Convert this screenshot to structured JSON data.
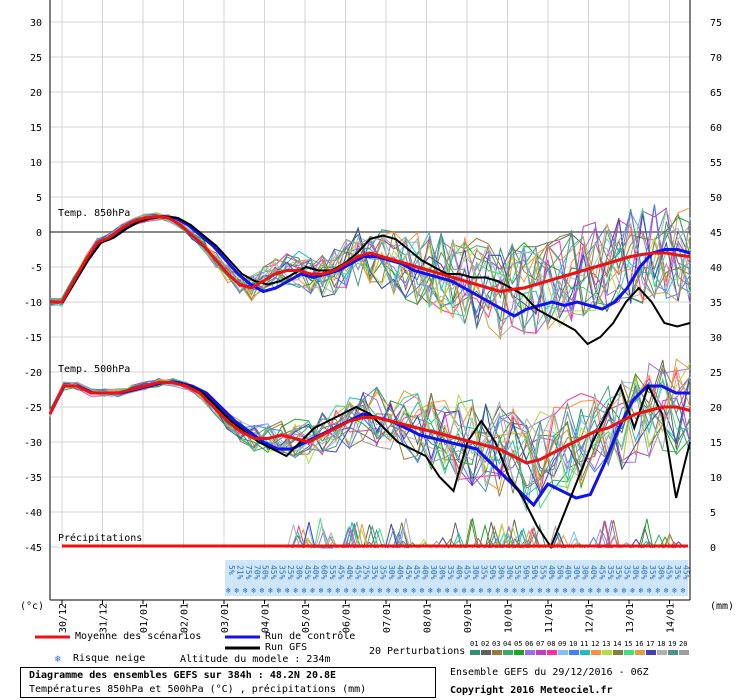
{
  "chart_data": {
    "type": "line",
    "left_axis_ticks": [
      30,
      25,
      20,
      15,
      10,
      5,
      0,
      -5,
      -10,
      -15,
      -20,
      -25,
      -30,
      -35,
      -40,
      -45
    ],
    "right_axis_ticks": [
      75,
      70,
      65,
      60,
      55,
      50,
      45,
      40,
      35,
      30,
      25,
      20,
      15,
      10,
      5,
      0
    ],
    "left_unit": "(°c)",
    "right_unit": "(mm)",
    "x_dates": [
      "30/12",
      "31/12",
      "01/01",
      "02/01",
      "03/01",
      "04/01",
      "05/01",
      "06/01",
      "07/01",
      "08/01",
      "09/01",
      "10/01",
      "11/01",
      "12/01",
      "13/01",
      "14/01"
    ],
    "section_labels": {
      "t850": "Temp. 850hPa",
      "t500": "Temp. 500hPa",
      "precip": "Précipitations"
    },
    "snow_risk_pct": [
      "5%",
      "21%",
      "75%",
      "70%",
      "50%",
      "45%",
      "35%",
      "25%",
      "30%",
      "45%",
      "40%",
      "60%",
      "55%",
      "45%",
      "40%",
      "45%",
      "25%",
      "35%",
      "35%",
      "30%",
      "40%",
      "45%",
      "45%",
      "40%",
      "30%",
      "30%",
      "35%",
      "40%",
      "45%",
      "30%",
      "35%",
      "50%",
      "30%",
      "30%",
      "55%",
      "50%",
      "50%",
      "55%",
      "40%",
      "50%",
      "40%",
      "30%",
      "30%",
      "40%",
      "45%",
      "35%",
      "35%",
      "35%",
      "30%",
      "40%",
      "35%",
      "30%",
      "45%",
      "35%",
      "45%"
    ],
    "t850_mean": [
      -10,
      -10,
      -7,
      -4,
      -1.5,
      -0.8,
      0.5,
      1.5,
      2,
      2.2,
      2,
      1,
      -0.5,
      -2,
      -4,
      -6,
      -7.5,
      -8,
      -7,
      -6,
      -5.5,
      -5.5,
      -6,
      -6,
      -5.5,
      -4.5,
      -3.5,
      -3,
      -3.5,
      -4,
      -4.5,
      -5,
      -5.5,
      -6,
      -6.5,
      -7,
      -7.5,
      -8,
      -8.5,
      -8.2,
      -8,
      -7.5,
      -7,
      -6.5,
      -6,
      -5.5,
      -5,
      -4.5,
      -4,
      -3.5,
      -3.2,
      -3,
      -3,
      -3.3,
      -3.5
    ],
    "t850_control": [
      -10,
      -10,
      -7,
      -4,
      -1.5,
      -0.8,
      0.5,
      1.5,
      2,
      2.2,
      2,
      1,
      -0.5,
      -2,
      -4,
      -6,
      -7.5,
      -8.5,
      -8,
      -7,
      -6,
      -6.5,
      -6,
      -5.5,
      -4.5,
      -3.5,
      -3.5,
      -4,
      -4.5,
      -5.5,
      -6,
      -6.5,
      -7,
      -8,
      -9,
      -10,
      -11,
      -12,
      -11,
      -10.5,
      -10,
      -10.5,
      -10,
      -10.5,
      -11,
      -10,
      -8,
      -5,
      -3,
      -2.5,
      -2.5,
      -3
    ],
    "t850_gfs": [
      -10,
      -10,
      -7,
      -4,
      -1.5,
      -0.8,
      0.5,
      1.5,
      2,
      2.2,
      2,
      1,
      -0.5,
      -2,
      -4,
      -6,
      -7,
      -7.5,
      -7,
      -6,
      -5,
      -5.5,
      -5.5,
      -4.5,
      -3,
      -1,
      -0.5,
      -1,
      -2.5,
      -4,
      -5,
      -6,
      -6,
      -6.5,
      -6.5,
      -7,
      -8,
      -9,
      -11,
      -12,
      -13,
      -14,
      -16,
      -15,
      -13,
      -10,
      -8,
      -10,
      -13,
      -13.5,
      -13
    ],
    "t500_mean": [
      -26,
      -22,
      -22,
      -23,
      -23,
      -23,
      -22.5,
      -22,
      -21.5,
      -21.5,
      -22,
      -23,
      -25,
      -27,
      -28.5,
      -29.5,
      -29.5,
      -29,
      -29.5,
      -30,
      -29,
      -28,
      -27,
      -26.5,
      -26.5,
      -27,
      -27.5,
      -28,
      -28.5,
      -29,
      -29.5,
      -30,
      -30.5,
      -31,
      -32,
      -33,
      -32.5,
      -31.5,
      -30.5,
      -29.5,
      -28.5,
      -28,
      -27,
      -26,
      -25.5,
      -25,
      -25,
      -25.5
    ],
    "t500_control": [
      -26,
      -22,
      -22,
      -23,
      -23,
      -23,
      -22.5,
      -22,
      -21.5,
      -21.5,
      -22,
      -23,
      -25,
      -27,
      -28.5,
      -30,
      -31,
      -31,
      -30,
      -29,
      -28,
      -27,
      -26,
      -26.5,
      -27,
      -28,
      -29,
      -29.5,
      -30,
      -30.5,
      -31,
      -33,
      -35,
      -37,
      -39,
      -36,
      -37,
      -38,
      -37.5,
      -33,
      -28,
      -24,
      -22,
      -22,
      -23,
      -23
    ],
    "t500_gfs": [
      -26,
      -22,
      -22,
      -23,
      -23,
      -23,
      -22.5,
      -22,
      -21.5,
      -21.5,
      -22,
      -23,
      -25,
      -27,
      -28.5,
      -30,
      -31,
      -32,
      -30,
      -28,
      -27,
      -26,
      -25,
      -26,
      -28,
      -30,
      -31,
      -32,
      -35,
      -37,
      -30,
      -27,
      -30,
      -35,
      -38,
      -42,
      -45,
      -40,
      -35,
      -30,
      -26,
      -22,
      -28,
      -22,
      -26,
      -38,
      -30
    ],
    "legend": {
      "mean": "Moyenne des scénarios",
      "control": "Run de contrôle",
      "gfs": "Run GFS",
      "snow": "Risque neige",
      "altitude": "Altitude du modele : 234m",
      "perturbations": "20 Perturbations",
      "perturbation_ids": [
        "01",
        "02",
        "03",
        "04",
        "05",
        "06",
        "07",
        "08",
        "09",
        "10",
        "11",
        "12",
        "13",
        "14",
        "15",
        "16",
        "17",
        "18",
        "19",
        "20"
      ],
      "perturbation_colors": [
        "#2f8f6f",
        "#5f5f5f",
        "#9b7b3b",
        "#3ba86b",
        "#17a81b",
        "#9b6bff",
        "#bf3fbf",
        "#ff2fa0",
        "#7fbfff",
        "#3f7fff",
        "#1fbfbf",
        "#ff8f3f",
        "#afdf3f",
        "#7f7f3f",
        "#3fdf7f",
        "#df9f3f",
        "#3f3fbf",
        "#afafaf",
        "#4f8f8f",
        "#9f9f9f"
      ]
    },
    "info": {
      "title": "Diagramme des ensembles GEFS sur 384h : 48.2N 20.8E",
      "subtitle": "Températures 850hPa et 500hPa (°C) , précipitations (mm)",
      "ensemble": "Ensemble GEFS du 29/12/2016 - 06Z",
      "copyright": "Copyright 2016 Meteociel.fr"
    },
    "colors": {
      "mean": "#ee1111",
      "control": "#1111ee",
      "gfs": "#000000",
      "snow_band": "#cfe6f8",
      "snow_text": "#2a6fbf"
    }
  }
}
